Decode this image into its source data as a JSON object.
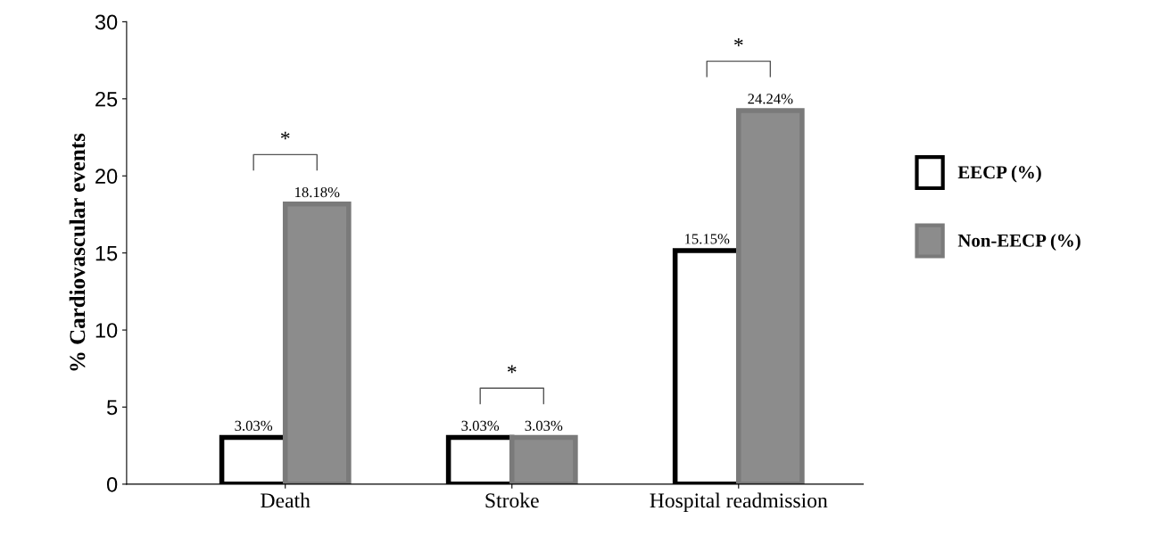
{
  "chart_data": {
    "type": "bar",
    "ylabel": "% Cardiovascular events",
    "categories": [
      "Death",
      "Stroke",
      "Hospital readmission"
    ],
    "series": [
      {
        "name": "EECP (%)",
        "color": "#ffffff",
        "values": [
          3.03,
          3.03,
          15.15
        ],
        "value_labels": [
          "3.03%",
          "3.03%",
          "15.15%"
        ]
      },
      {
        "name": "Non-EECP (%)",
        "color": "#8c8c8c",
        "values": [
          18.18,
          3.03,
          24.24
        ],
        "value_labels": [
          "18.18%",
          "3.03%",
          "24.24%"
        ]
      }
    ],
    "ylim": [
      0,
      30
    ],
    "yticks": [
      0,
      5,
      10,
      15,
      20,
      25,
      30
    ],
    "grid": false,
    "legend": "right",
    "annotations": [
      "*",
      "*",
      "*"
    ]
  }
}
